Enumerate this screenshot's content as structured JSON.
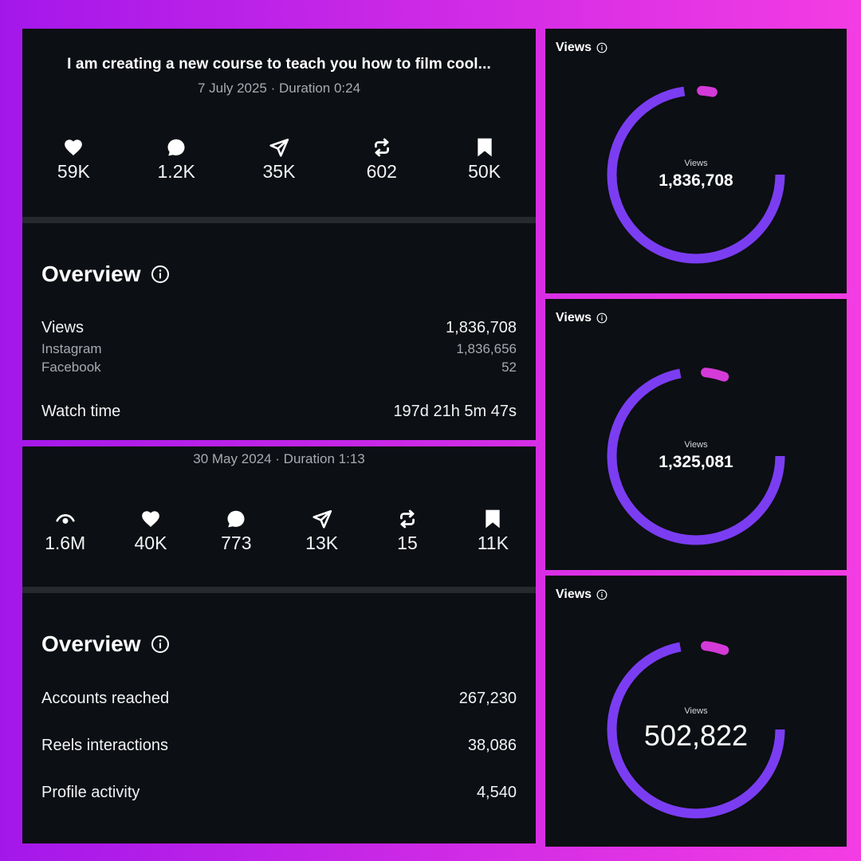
{
  "post1": {
    "title": "I am creating a new course to teach you how to film cool...",
    "meta": "7 July 2025 · Duration 0:24",
    "stats": [
      {
        "icon": "heart-icon",
        "value": "59K"
      },
      {
        "icon": "comment-icon",
        "value": "1.2K"
      },
      {
        "icon": "send-icon",
        "value": "35K"
      },
      {
        "icon": "repost-icon",
        "value": "602"
      },
      {
        "icon": "bookmark-icon",
        "value": "50K"
      }
    ],
    "overview": {
      "title": "Overview",
      "views_label": "Views",
      "views_value": "1,836,708",
      "instagram_label": "Instagram",
      "instagram_value": "1,836,656",
      "facebook_label": "Facebook",
      "facebook_value": "52",
      "watch_label": "Watch time",
      "watch_value": "197d 21h 5m 47s"
    }
  },
  "post2": {
    "meta": "30 May 2024 · Duration 1:13",
    "stats": [
      {
        "icon": "eye-icon",
        "value": "1.6M"
      },
      {
        "icon": "heart-icon",
        "value": "40K"
      },
      {
        "icon": "comment-icon",
        "value": "773"
      },
      {
        "icon": "send-icon",
        "value": "13K"
      },
      {
        "icon": "repost-icon",
        "value": "15"
      },
      {
        "icon": "bookmark-icon",
        "value": "11K"
      }
    ],
    "overview": {
      "title": "Overview",
      "rows": [
        {
          "label": "Accounts reached",
          "value": "267,230"
        },
        {
          "label": "Reels interactions",
          "value": "38,086"
        },
        {
          "label": "Profile activity",
          "value": "4,540"
        }
      ]
    }
  },
  "view_cards": [
    {
      "heading": "Views",
      "center_label": "Views",
      "value": "1,836,708",
      "accent_fraction": 0.03
    },
    {
      "heading": "Views",
      "center_label": "Views",
      "value": "1,325,081",
      "accent_fraction": 0.045
    },
    {
      "heading": "Views",
      "center_label": "Views",
      "value": "502,822",
      "accent_fraction": 0.045
    }
  ],
  "colors": {
    "ring_main": "#7b3df2",
    "ring_accent": "#d43ad8",
    "panel": "#0c0f13",
    "muted_text": "#a7abb1"
  }
}
